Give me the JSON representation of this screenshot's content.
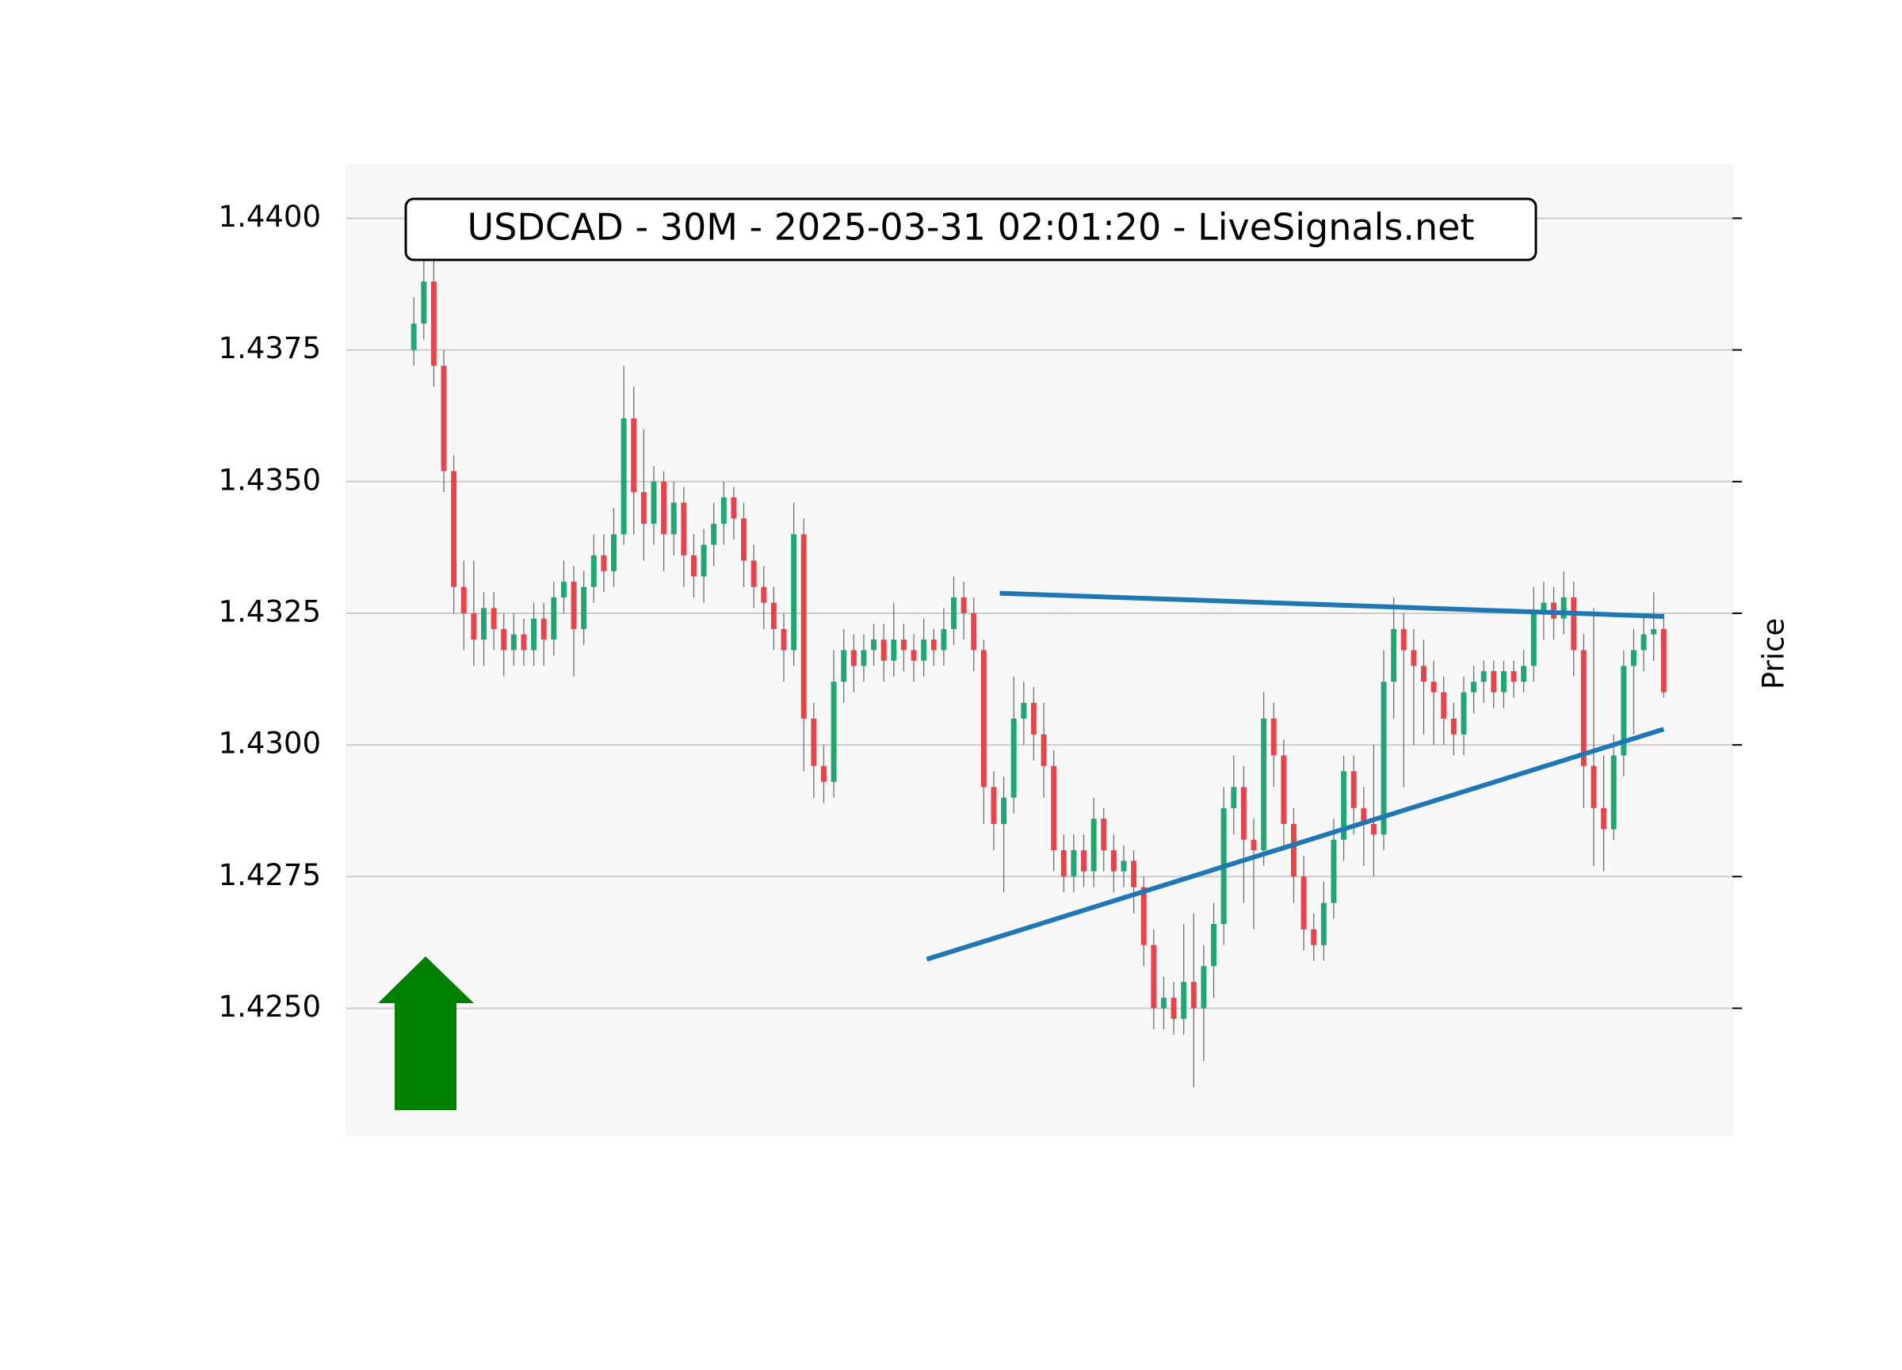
{
  "chart_data": {
    "type": "candlestick",
    "title": "USDCAD - 30M - 2025-03-31 02:01:20 - LiveSignals.net",
    "y_label": "Price",
    "ylim": [
      1.4226,
      1.441
    ],
    "xlim": [
      -6.75,
      131.87
    ],
    "yticks": [
      {
        "value": 1.425,
        "label": "1.4250"
      },
      {
        "value": 1.4275,
        "label": "1.4275"
      },
      {
        "value": 1.43,
        "label": "1.4300"
      },
      {
        "value": 1.4325,
        "label": "1.4325"
      },
      {
        "value": 1.435,
        "label": "1.4350"
      },
      {
        "value": 1.4375,
        "label": "1.4375"
      },
      {
        "value": 1.44,
        "label": "1.4400"
      }
    ],
    "grid": true,
    "up_color": "#1fa672",
    "down_color": "#e8434a",
    "wick_color": "#666666",
    "open": [
      1.4375,
      1.438,
      1.4388,
      1.4372,
      1.4352,
      1.433,
      1.4325,
      1.432,
      1.4326,
      1.4322,
      1.4318,
      1.4321,
      1.4318,
      1.4324,
      1.432,
      1.4328,
      1.4331,
      1.4322,
      1.433,
      1.4336,
      1.4333,
      1.434,
      1.4362,
      1.4348,
      1.4342,
      1.435,
      1.434,
      1.4346,
      1.4336,
      1.4332,
      1.4338,
      1.4342,
      1.4347,
      1.4343,
      1.4335,
      1.433,
      1.4327,
      1.4322,
      1.4318,
      1.434,
      1.4305,
      1.4296,
      1.4293,
      1.4312,
      1.4318,
      1.4315,
      1.4318,
      1.432,
      1.4316,
      1.432,
      1.4318,
      1.4316,
      1.432,
      1.4318,
      1.4322,
      1.4328,
      1.4325,
      1.4318,
      1.4292,
      1.4285,
      1.429,
      1.4305,
      1.4308,
      1.4302,
      1.4296,
      1.428,
      1.4275,
      1.428,
      1.4276,
      1.4286,
      1.428,
      1.4276,
      1.4278,
      1.4273,
      1.4262,
      1.425,
      1.4252,
      1.4248,
      1.4255,
      1.425,
      1.4258,
      1.4266,
      1.4288,
      1.4292,
      1.4282,
      1.428,
      1.4305,
      1.4298,
      1.4285,
      1.4275,
      1.4265,
      1.4262,
      1.427,
      1.4282,
      1.4295,
      1.4288,
      1.4285,
      1.4283,
      1.4312,
      1.4322,
      1.4318,
      1.4315,
      1.4312,
      1.431,
      1.4305,
      1.4302,
      1.431,
      1.4312,
      1.4314,
      1.431,
      1.4314,
      1.4312,
      1.4315,
      1.4325,
      1.4327,
      1.4324,
      1.4328,
      1.4318,
      1.4296,
      1.4288,
      1.4284,
      1.4298,
      1.4315,
      1.4318,
      1.4321,
      1.4322
    ],
    "high": [
      1.4385,
      1.4398,
      1.4392,
      1.4375,
      1.4355,
      1.4335,
      1.4335,
      1.4329,
      1.4329,
      1.4325,
      1.4325,
      1.4324,
      1.4327,
      1.4327,
      1.4331,
      1.4335,
      1.4334,
      1.4333,
      1.434,
      1.434,
      1.4345,
      1.4372,
      1.4368,
      1.436,
      1.4353,
      1.4352,
      1.435,
      1.4349,
      1.434,
      1.4341,
      1.4346,
      1.435,
      1.4349,
      1.4346,
      1.4338,
      1.4334,
      1.433,
      1.4325,
      1.4346,
      1.4343,
      1.4308,
      1.43,
      1.4318,
      1.4322,
      1.4321,
      1.4321,
      1.4323,
      1.4323,
      1.4327,
      1.4323,
      1.4321,
      1.4324,
      1.4322,
      1.4326,
      1.4332,
      1.4331,
      1.4328,
      1.432,
      1.4295,
      1.4294,
      1.4313,
      1.4312,
      1.4311,
      1.4308,
      1.4299,
      1.4283,
      1.4283,
      1.4283,
      1.429,
      1.4288,
      1.4283,
      1.4281,
      1.428,
      1.4275,
      1.4265,
      1.4256,
      1.4255,
      1.4266,
      1.4268,
      1.4262,
      1.427,
      1.4292,
      1.4298,
      1.4296,
      1.4286,
      1.431,
      1.4308,
      1.4301,
      1.4288,
      1.4279,
      1.4268,
      1.4274,
      1.4286,
      1.4298,
      1.4298,
      1.4292,
      1.43,
      1.4318,
      1.4328,
      1.4325,
      1.4322,
      1.432,
      1.4316,
      1.4313,
      1.4308,
      1.4313,
      1.4315,
      1.4316,
      1.4316,
      1.4316,
      1.4316,
      1.4318,
      1.433,
      1.4331,
      1.433,
      1.4333,
      1.4331,
      1.4321,
      1.4326,
      1.4298,
      1.4302,
      1.4318,
      1.4322,
      1.4325,
      1.4329,
      1.4325
    ],
    "low": [
      1.4372,
      1.4377,
      1.4368,
      1.4348,
      1.4325,
      1.4318,
      1.4315,
      1.4315,
      1.4318,
      1.4313,
      1.4315,
      1.4315,
      1.4315,
      1.4315,
      1.4317,
      1.4325,
      1.4313,
      1.4319,
      1.4327,
      1.4329,
      1.433,
      1.4338,
      1.434,
      1.4335,
      1.4338,
      1.4333,
      1.4336,
      1.433,
      1.4328,
      1.4327,
      1.4334,
      1.4338,
      1.4339,
      1.433,
      1.4326,
      1.4322,
      1.4318,
      1.4312,
      1.4315,
      1.4295,
      1.429,
      1.4289,
      1.429,
      1.4308,
      1.431,
      1.4312,
      1.4315,
      1.4312,
      1.4313,
      1.4314,
      1.4312,
      1.4313,
      1.4315,
      1.4315,
      1.4319,
      1.432,
      1.4314,
      1.4285,
      1.428,
      1.4272,
      1.4287,
      1.43,
      1.4297,
      1.429,
      1.4276,
      1.4272,
      1.4272,
      1.4273,
      1.4273,
      1.4276,
      1.4272,
      1.4273,
      1.4268,
      1.4258,
      1.4246,
      1.4246,
      1.4245,
      1.4245,
      1.4235,
      1.424,
      1.4252,
      1.4262,
      1.4283,
      1.427,
      1.4265,
      1.4277,
      1.4292,
      1.428,
      1.427,
      1.4261,
      1.4259,
      1.4259,
      1.4267,
      1.4278,
      1.4283,
      1.4277,
      1.4275,
      1.428,
      1.4305,
      1.4292,
      1.43,
      1.4302,
      1.43,
      1.43,
      1.4298,
      1.4298,
      1.4306,
      1.4308,
      1.4307,
      1.4307,
      1.4309,
      1.431,
      1.4312,
      1.432,
      1.432,
      1.4321,
      1.4313,
      1.4288,
      1.4277,
      1.4276,
      1.4282,
      1.4294,
      1.4302,
      1.4314,
      1.4316,
      1.4309
    ],
    "close": [
      1.438,
      1.4388,
      1.4372,
      1.4352,
      1.433,
      1.4325,
      1.432,
      1.4326,
      1.4322,
      1.4318,
      1.4321,
      1.4318,
      1.4324,
      1.432,
      1.4328,
      1.4331,
      1.4322,
      1.433,
      1.4336,
      1.4333,
      1.434,
      1.4362,
      1.4348,
      1.4342,
      1.435,
      1.434,
      1.4346,
      1.4336,
      1.4332,
      1.4338,
      1.4342,
      1.4347,
      1.4343,
      1.4335,
      1.433,
      1.4327,
      1.4322,
      1.4318,
      1.434,
      1.4305,
      1.4296,
      1.4293,
      1.4312,
      1.4318,
      1.4315,
      1.4318,
      1.432,
      1.4316,
      1.432,
      1.4318,
      1.4316,
      1.432,
      1.4318,
      1.4322,
      1.4328,
      1.4325,
      1.4318,
      1.4292,
      1.4285,
      1.429,
      1.4305,
      1.4308,
      1.4302,
      1.4296,
      1.428,
      1.4275,
      1.428,
      1.4276,
      1.4286,
      1.428,
      1.4276,
      1.4278,
      1.4273,
      1.4262,
      1.425,
      1.4252,
      1.4248,
      1.4255,
      1.425,
      1.4258,
      1.4266,
      1.4288,
      1.4292,
      1.4282,
      1.428,
      1.4305,
      1.4298,
      1.4285,
      1.4275,
      1.4265,
      1.4262,
      1.427,
      1.4282,
      1.4295,
      1.4288,
      1.4285,
      1.4283,
      1.4312,
      1.4322,
      1.4318,
      1.4315,
      1.4312,
      1.431,
      1.4305,
      1.4302,
      1.431,
      1.4312,
      1.4314,
      1.431,
      1.4314,
      1.4312,
      1.4315,
      1.4325,
      1.4327,
      1.4324,
      1.4328,
      1.4318,
      1.4296,
      1.4288,
      1.4284,
      1.4298,
      1.4315,
      1.4318,
      1.4321,
      1.4322,
      1.431
    ],
    "lines": [
      {
        "color": "#1f77b4",
        "x": [
          58.6,
          125
        ],
        "y": [
          1.43288,
          1.43244
        ]
      },
      {
        "color": "#1f77b4",
        "x": [
          51.3,
          125
        ],
        "y": [
          1.42593,
          1.4303
        ]
      }
    ]
  }
}
